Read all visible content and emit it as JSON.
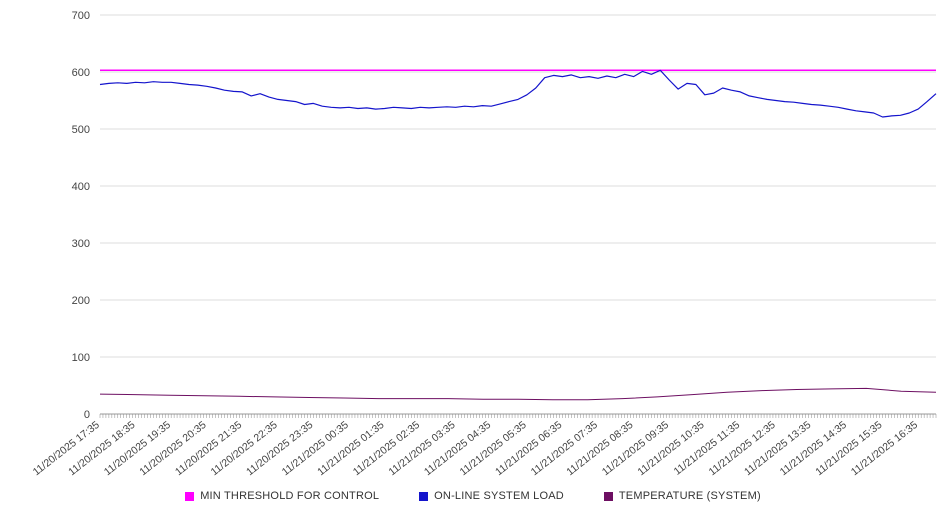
{
  "chart_data": {
    "type": "line",
    "title": "",
    "xlabel": "",
    "ylabel": "",
    "ylim": [
      0,
      700
    ],
    "yticks": [
      0,
      100,
      200,
      300,
      400,
      500,
      600,
      700
    ],
    "grid": true,
    "legend_position": "bottom",
    "total_hours": 23.5,
    "x_labels": [
      "11/20/2025 17:35",
      "11/20/2025 18:35",
      "11/20/2025 19:35",
      "11/20/2025 20:35",
      "11/20/2025 21:35",
      "11/20/2025 22:35",
      "11/20/2025 23:35",
      "11/21/2025 00:35",
      "11/21/2025 01:35",
      "11/21/2025 02:35",
      "11/21/2025 03:35",
      "11/21/2025 04:35",
      "11/21/2025 05:35",
      "11/21/2025 06:35",
      "11/21/2025 07:35",
      "11/21/2025 08:35",
      "11/21/2025 09:35",
      "11/21/2025 10:35",
      "11/21/2025 11:35",
      "11/21/2025 12:35",
      "11/21/2025 13:35",
      "11/21/2025 14:35",
      "11/21/2025 15:35",
      "11/21/2025 16:35"
    ],
    "series": [
      {
        "name": "MIN THRESHOLD FOR CONTROL",
        "color": "#ff00ff",
        "values": [
          603,
          603
        ]
      },
      {
        "name": "ON-LINE SYSTEM LOAD",
        "color": "#1414cc",
        "values": [
          578,
          580,
          581,
          580,
          582,
          581,
          583,
          582,
          582,
          580,
          578,
          577,
          575,
          572,
          568,
          566,
          565,
          558,
          562,
          556,
          552,
          550,
          548,
          543,
          545,
          540,
          538,
          537,
          538,
          536,
          537,
          535,
          536,
          538,
          537,
          536,
          538,
          537,
          538,
          539,
          538,
          540,
          539,
          541,
          540,
          544,
          548,
          552,
          560,
          572,
          590,
          594,
          592,
          595,
          590,
          592,
          589,
          593,
          590,
          596,
          592,
          601,
          596,
          603,
          586,
          570,
          580,
          578,
          560,
          563,
          572,
          568,
          565,
          558,
          555,
          552,
          550,
          548,
          547,
          545,
          543,
          542,
          540,
          538,
          535,
          532,
          530,
          528,
          521,
          523,
          524,
          528,
          535,
          548,
          562
        ]
      },
      {
        "name": "TEMPERATURE (SYSTEM)",
        "color": "#6d0f62",
        "values": [
          35,
          34,
          33,
          32,
          31,
          30,
          29,
          28,
          27,
          27,
          27,
          26,
          26,
          25,
          25,
          27,
          30,
          34,
          38,
          41,
          43,
          44,
          45,
          40,
          38
        ]
      }
    ]
  }
}
